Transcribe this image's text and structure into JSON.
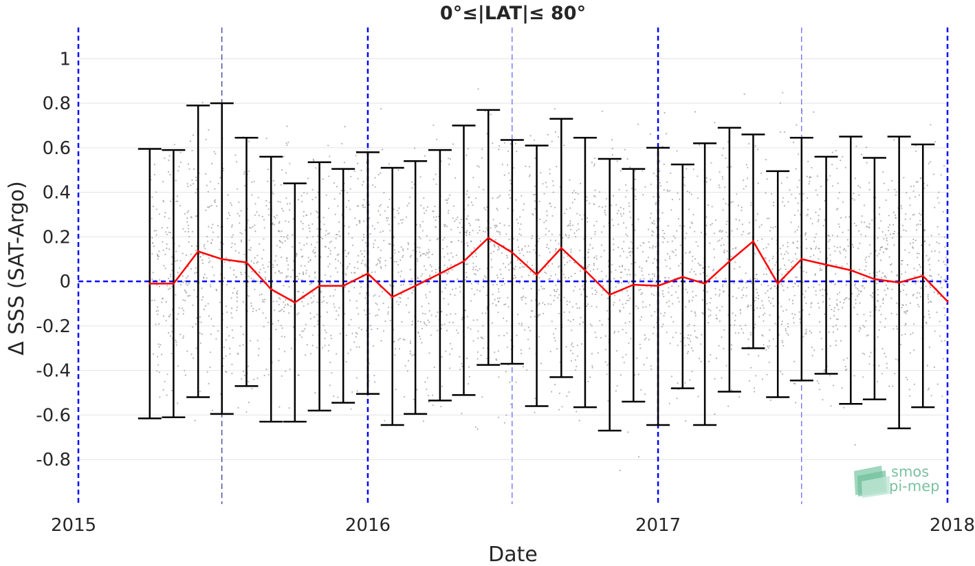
{
  "chart_data": {
    "type": "line",
    "title": "0°≤|LAT|≤ 80°",
    "xlabel": "Date",
    "ylabel": "Δ SSS (SAT-Argo)",
    "xlim": [
      "2015-01-01",
      "2018-01-01"
    ],
    "ylim": [
      -1,
      1.14
    ],
    "x_ticks": [
      "2015-01-01",
      "2016-01-01",
      "2017-01-01",
      "2018-01-01"
    ],
    "x_tick_labels": [
      "2015",
      "2016",
      "2017",
      "2018"
    ],
    "y_ticks": [
      -0.8,
      -0.6,
      -0.4,
      -0.2,
      0,
      0.2,
      0.4,
      0.6,
      0.8,
      1
    ],
    "y_tick_labels": [
      "-0.8",
      "-0.6",
      "-0.4",
      "-0.2",
      "0",
      "0.2",
      "0.4",
      "0.6",
      "0.8",
      "1"
    ],
    "grid": "horizontal",
    "reference_line": {
      "y": 0,
      "color": "#0000ff",
      "style": "dashed"
    },
    "year_lines": [
      "2015-01-01",
      "2016-01-01",
      "2017-01-01",
      "2018-01-01"
    ],
    "midyear_lines": [
      "2015-07-01",
      "2016-07-01",
      "2017-07-01"
    ],
    "scatter": {
      "color": "#9a9a9a",
      "count": 3500,
      "x_range": [
        "2015-04-01",
        "2018-01-01"
      ],
      "y_range": [
        -1.0,
        1.14
      ]
    },
    "series": [
      {
        "color": "#ff0000",
        "x": [
          "2015-04-01",
          "2015-05-01",
          "2015-06-01",
          "2015-07-01",
          "2015-08-01",
          "2015-09-01",
          "2015-10-01",
          "2015-11-01",
          "2015-12-01",
          "2016-01-01",
          "2016-02-01",
          "2016-03-01",
          "2016-04-01",
          "2016-05-01",
          "2016-06-01",
          "2016-07-01",
          "2016-08-01",
          "2016-09-01",
          "2016-10-01",
          "2016-11-01",
          "2016-12-01",
          "2017-01-01",
          "2017-02-01",
          "2017-03-01",
          "2017-04-01",
          "2017-05-01",
          "2017-06-01",
          "2017-07-01",
          "2017-08-01",
          "2017-09-01",
          "2017-10-01",
          "2017-11-01",
          "2017-12-01",
          "2018-01-01"
        ],
        "y": [
          -0.01,
          -0.01,
          0.135,
          0.1,
          0.085,
          -0.035,
          -0.095,
          -0.02,
          -0.02,
          0.035,
          -0.07,
          -0.02,
          0.035,
          0.09,
          0.195,
          0.13,
          0.03,
          0.15,
          0.05,
          -0.06,
          -0.015,
          -0.02,
          0.02,
          -0.01,
          0.09,
          0.18,
          -0.01,
          0.1,
          0.075,
          0.05,
          0.01,
          -0.005,
          0.025,
          -0.09
        ],
        "error_bars": {
          "color": "#000000",
          "upper": [
            0.595,
            0.59,
            0.79,
            0.8,
            0.645,
            0.56,
            0.44,
            0.535,
            0.505,
            0.58,
            0.51,
            0.54,
            0.59,
            0.7,
            0.77,
            0.635,
            0.61,
            0.73,
            0.645,
            0.55,
            0.505,
            0.6,
            0.525,
            0.62,
            0.69,
            0.66,
            0.495,
            0.645,
            0.56,
            0.65,
            0.555,
            0.65,
            0.615,
            null
          ],
          "lower": [
            -0.615,
            -0.61,
            -0.52,
            -0.595,
            -0.47,
            -0.63,
            -0.63,
            -0.58,
            -0.545,
            -0.505,
            -0.645,
            -0.595,
            -0.535,
            -0.51,
            -0.375,
            -0.37,
            -0.56,
            -0.43,
            -0.565,
            -0.67,
            -0.54,
            -0.645,
            -0.48,
            -0.645,
            -0.495,
            -0.3,
            -0.52,
            -0.445,
            -0.415,
            -0.55,
            -0.53,
            -0.66,
            -0.565,
            null
          ]
        }
      }
    ]
  },
  "logo": {
    "line1": "smos",
    "line2": "pi-mep",
    "color": "#7cc1a2"
  }
}
